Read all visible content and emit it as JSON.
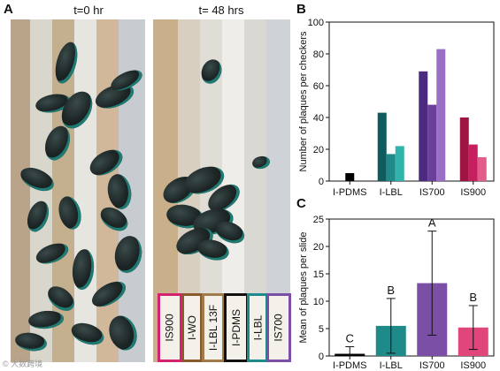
{
  "panels": {
    "a": "A",
    "b": "B",
    "c": "C"
  },
  "photo_titles": {
    "left": "t=0 hr",
    "right": "t= 48 hrs"
  },
  "coating_labels": [
    {
      "text": "IS900",
      "color": "#d2236e"
    },
    {
      "text": "I-WO",
      "color": "#8a5a2b"
    },
    {
      "text": "I-LBL 13F",
      "color": "#a07a4a"
    },
    {
      "text": "I-PDMS",
      "color": "#111111"
    },
    {
      "text": "I-LBL",
      "color": "#1e8a8a"
    },
    {
      "text": "IS700",
      "color": "#7b4fa6"
    }
  ],
  "watermark": "© 大数跨境",
  "chart_data": [
    {
      "type": "bar",
      "ylabel": "Number of plaques per checkers",
      "ylim": [
        0,
        100
      ],
      "yticks": [
        0,
        20,
        40,
        60,
        80,
        100
      ],
      "groups": [
        {
          "label": "I-PDMS",
          "values": [
            5
          ],
          "colors": [
            "#000000"
          ]
        },
        {
          "label": "I-LBL",
          "values": [
            43,
            17,
            22
          ],
          "colors": [
            "#0f5b5e",
            "#1e8a8a",
            "#2fb3aa"
          ]
        },
        {
          "label": "IS700",
          "values": [
            69,
            48,
            83
          ],
          "colors": [
            "#4b2a80",
            "#6a3f99",
            "#9a6fc4"
          ]
        },
        {
          "label": "IS900",
          "values": [
            40,
            23,
            15
          ],
          "colors": [
            "#9e1442",
            "#c51f5d",
            "#e25d8c"
          ]
        }
      ]
    },
    {
      "type": "bar",
      "ylabel": "Mean of plaques per slide",
      "ylim": [
        0,
        25
      ],
      "yticks": [
        0,
        5,
        10,
        15,
        20,
        25
      ],
      "categories": [
        "I-PDMS",
        "I-LBL",
        "IS700",
        "IS900"
      ],
      "values": [
        0.4,
        5.5,
        13.3,
        5.2
      ],
      "errors": [
        1.3,
        5.0,
        9.5,
        4.0
      ],
      "letters": [
        "C",
        "B",
        "A",
        "B"
      ],
      "colors": [
        "#000000",
        "#1e8a8a",
        "#7b4fa6",
        "#e0457b"
      ]
    }
  ]
}
